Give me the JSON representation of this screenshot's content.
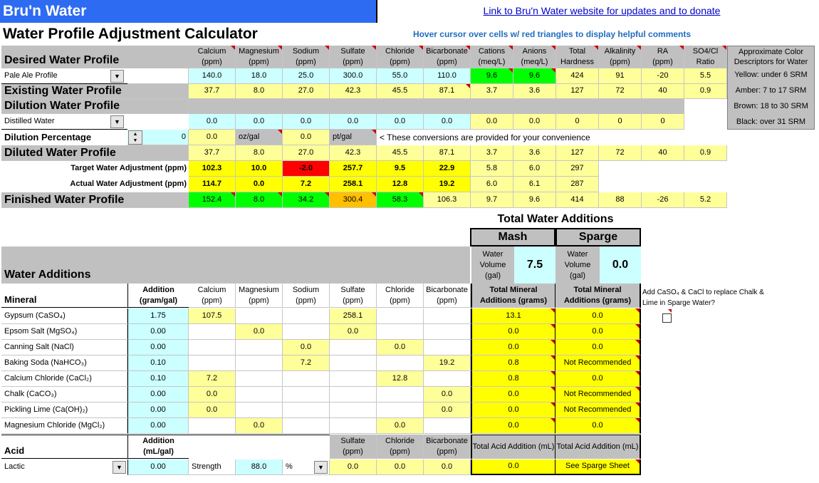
{
  "header": {
    "app_title": "Bru'n Water",
    "calc_title": "Water Profile Adjustment Calculator",
    "link_text": "Link to Bru'n Water website for updates and to donate",
    "hover_hint": "Hover cursor over cells w/ red triangles to display helpful comments"
  },
  "colors": {
    "title_bar": "#2d6cf2",
    "cyan": "#ccffff",
    "light_yellow": "#ffff99",
    "yellow": "#ffff00",
    "green": "#00ff00",
    "red": "#ff0000",
    "orange": "#ffc000",
    "gray": "#c0c0c0"
  },
  "profile_headers": [
    "Calcium\n(ppm)",
    "Magnesium\n(ppm)",
    "Sodium\n(ppm)",
    "Sulfate\n(ppm)",
    "Chloride\n(ppm)",
    "Bicarbonate\n(ppm)",
    "Cations\n(meq/L)",
    "Anions\n(meq/L)",
    "Total\nHardness",
    "Alkalinity\n(ppm)",
    "RA\n(ppm)",
    "SO4/Cl\nRatio"
  ],
  "color_panel": {
    "title": "Approximate Color Descriptors for Water",
    "items": [
      "Yellow: under 6 SRM",
      "Amber: 7 to 17 SRM",
      "Brown: 18 to 30 SRM",
      "Black: over 31 SRM"
    ]
  },
  "desired": {
    "label": "Desired Water Profile",
    "select": "Pale Ale Profile",
    "values": [
      "140.0",
      "18.0",
      "25.0",
      "300.0",
      "55.0",
      "110.0",
      "9.6",
      "9.6",
      "424",
      "91",
      "-20",
      "5.5"
    ]
  },
  "existing": {
    "label": "Existing Water Profile",
    "values": [
      "37.7",
      "8.0",
      "27.0",
      "42.3",
      "45.5",
      "87.1",
      "3.7",
      "3.6",
      "127",
      "72",
      "40",
      "0.9"
    ]
  },
  "dilution": {
    "label": "Dilution Water Profile",
    "select": "Distilled Water",
    "values": [
      "0.0",
      "0.0",
      "0.0",
      "0.0",
      "0.0",
      "0.0",
      "0.0",
      "0.0",
      "0",
      "0",
      "0"
    ]
  },
  "dilution_pct": {
    "label": "Dilution Percentage",
    "value": "0",
    "conv1": "0.0",
    "unit1": "oz/gal",
    "conv2": "0.0",
    "unit2": "pt/gal",
    "note": "< These conversions are provided for your convenience"
  },
  "diluted": {
    "label": "Diluted Water Profile",
    "values": [
      "37.7",
      "8.0",
      "27.0",
      "42.3",
      "45.5",
      "87.1",
      "3.7",
      "3.6",
      "127",
      "72",
      "40",
      "0.9"
    ]
  },
  "target": {
    "label": "Target Water Adjustment (ppm)",
    "values": [
      "102.3",
      "10.0",
      "-2.0",
      "257.7",
      "9.5",
      "22.9",
      "5.8",
      "6.0",
      "297"
    ]
  },
  "actual": {
    "label": "Actual Water Adjustment (ppm)",
    "values": [
      "114.7",
      "0.0",
      "7.2",
      "258.1",
      "12.8",
      "19.2",
      "6.0",
      "6.1",
      "287"
    ]
  },
  "finished": {
    "label": "Finished Water Profile",
    "values": [
      "152.4",
      "8.0",
      "34.2",
      "300.4",
      "58.3",
      "106.3",
      "9.7",
      "9.6",
      "414",
      "88",
      "-26",
      "5.2"
    ]
  },
  "total_additions": {
    "title": "Total Water Additions",
    "mash": "Mash",
    "sparge": "Sparge",
    "water_volume_label": "Water\nVolume\n(gal)",
    "mash_volume": "7.5",
    "sparge_volume": "0.0"
  },
  "water_additions": {
    "title": "Water Additions",
    "mineral_header": "Mineral",
    "addition_header": "Addition\n(gram/gal)",
    "ion_headers": [
      "Calcium\n(ppm)",
      "Magnesium\n(ppm)",
      "Sodium\n(ppm)",
      "Sulfate\n(ppm)",
      "Chloride\n(ppm)",
      "Bicarbonate\n(ppm)"
    ],
    "mash_total_header": "Total Mineral\nAdditions (grams)",
    "sparge_total_header": "Total Mineral\nAdditions (grams)",
    "replace_note": "Add CaSO₄ & CaCl to replace Chalk & Lime in Sparge Water?",
    "rows": [
      {
        "name": "Gypsum (CaSO₄)",
        "add": "1.75",
        "ions": [
          "107.5",
          "",
          "",
          "258.1",
          "",
          ""
        ],
        "mash": "13.1",
        "sparge": "0.0"
      },
      {
        "name": "Epsom Salt (MgSO₄)",
        "add": "0.00",
        "ions": [
          "",
          "0.0",
          "",
          "0.0",
          "",
          ""
        ],
        "mash": "0.0",
        "sparge": "0.0"
      },
      {
        "name": "Canning Salt (NaCl)",
        "add": "0.00",
        "ions": [
          "",
          "",
          "0.0",
          "",
          "0.0",
          ""
        ],
        "mash": "0.0",
        "sparge": "0.0"
      },
      {
        "name": "Baking Soda (NaHCO₃)",
        "add": "0.10",
        "ions": [
          "",
          "",
          "7.2",
          "",
          "",
          "19.2"
        ],
        "mash": "0.8",
        "sparge": "Not Recommended"
      },
      {
        "name": "Calcium Chloride (CaCl₂)",
        "add": "0.10",
        "ions": [
          "7.2",
          "",
          "",
          "",
          "12.8",
          ""
        ],
        "mash": "0.8",
        "sparge": "0.0"
      },
      {
        "name": "Chalk (CaCO₃)",
        "add": "0.00",
        "ions": [
          "0.0",
          "",
          "",
          "",
          "",
          "0.0"
        ],
        "mash": "0.0",
        "sparge": "Not Recommended"
      },
      {
        "name": "Pickling Lime (Ca(OH)₂)",
        "add": "0.00",
        "ions": [
          "0.0",
          "",
          "",
          "",
          "",
          "0.0"
        ],
        "mash": "0.0",
        "sparge": "Not Recommended"
      },
      {
        "name": "Magnesium Chloride (MgCl₂)",
        "add": "0.00",
        "ions": [
          "",
          "0.0",
          "",
          "",
          "0.0",
          ""
        ],
        "mash": "0.0",
        "sparge": "0.0"
      }
    ]
  },
  "acid": {
    "header": "Acid",
    "addition_header": "Addition\n(mL/gal)",
    "select": "Lactic",
    "add": "0.00",
    "strength_label": "Strength",
    "strength": "88.0",
    "unit": "%",
    "ion_headers": [
      "Sulfate\n(ppm)",
      "Chloride\n(ppm)",
      "Bicarbonate\n(ppm)"
    ],
    "ion_values": [
      "0.0",
      "0.0",
      "0.0"
    ],
    "mash_header": "Total Acid Addition (mL)",
    "sparge_header": "Total Acid Addition (mL)",
    "mash_value": "0.0",
    "sparge_value": "See Sparge Sheet"
  }
}
